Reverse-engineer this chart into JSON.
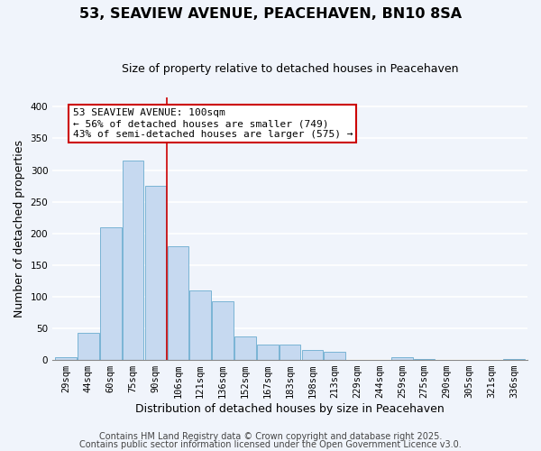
{
  "title": "53, SEAVIEW AVENUE, PEACEHAVEN, BN10 8SA",
  "subtitle": "Size of property relative to detached houses in Peacehaven",
  "xlabel": "Distribution of detached houses by size in Peacehaven",
  "ylabel": "Number of detached properties",
  "bar_labels": [
    "29sqm",
    "44sqm",
    "60sqm",
    "75sqm",
    "90sqm",
    "106sqm",
    "121sqm",
    "136sqm",
    "152sqm",
    "167sqm",
    "183sqm",
    "198sqm",
    "213sqm",
    "229sqm",
    "244sqm",
    "259sqm",
    "275sqm",
    "290sqm",
    "305sqm",
    "321sqm",
    "336sqm"
  ],
  "bar_values": [
    5,
    43,
    210,
    315,
    275,
    180,
    110,
    93,
    37,
    24,
    24,
    16,
    13,
    0,
    0,
    5,
    2,
    0,
    0,
    0,
    2
  ],
  "bar_color": "#c6d9f0",
  "bar_edgecolor": "#7ab4d4",
  "vline_x": 4.5,
  "vline_color": "#cc0000",
  "annotation_text": "53 SEAVIEW AVENUE: 100sqm\n← 56% of detached houses are smaller (749)\n43% of semi-detached houses are larger (575) →",
  "annotation_box_color": "#ffffff",
  "annotation_box_edgecolor": "#cc0000",
  "ylim": [
    0,
    415
  ],
  "yticks": [
    0,
    50,
    100,
    150,
    200,
    250,
    300,
    350,
    400
  ],
  "footer1": "Contains HM Land Registry data © Crown copyright and database right 2025.",
  "footer2": "Contains public sector information licensed under the Open Government Licence v3.0.",
  "background_color": "#f0f4fb",
  "grid_color": "#ffffff",
  "title_fontsize": 11.5,
  "subtitle_fontsize": 9,
  "axis_label_fontsize": 9,
  "tick_fontsize": 7.5,
  "annotation_fontsize": 8,
  "footer_fontsize": 7
}
